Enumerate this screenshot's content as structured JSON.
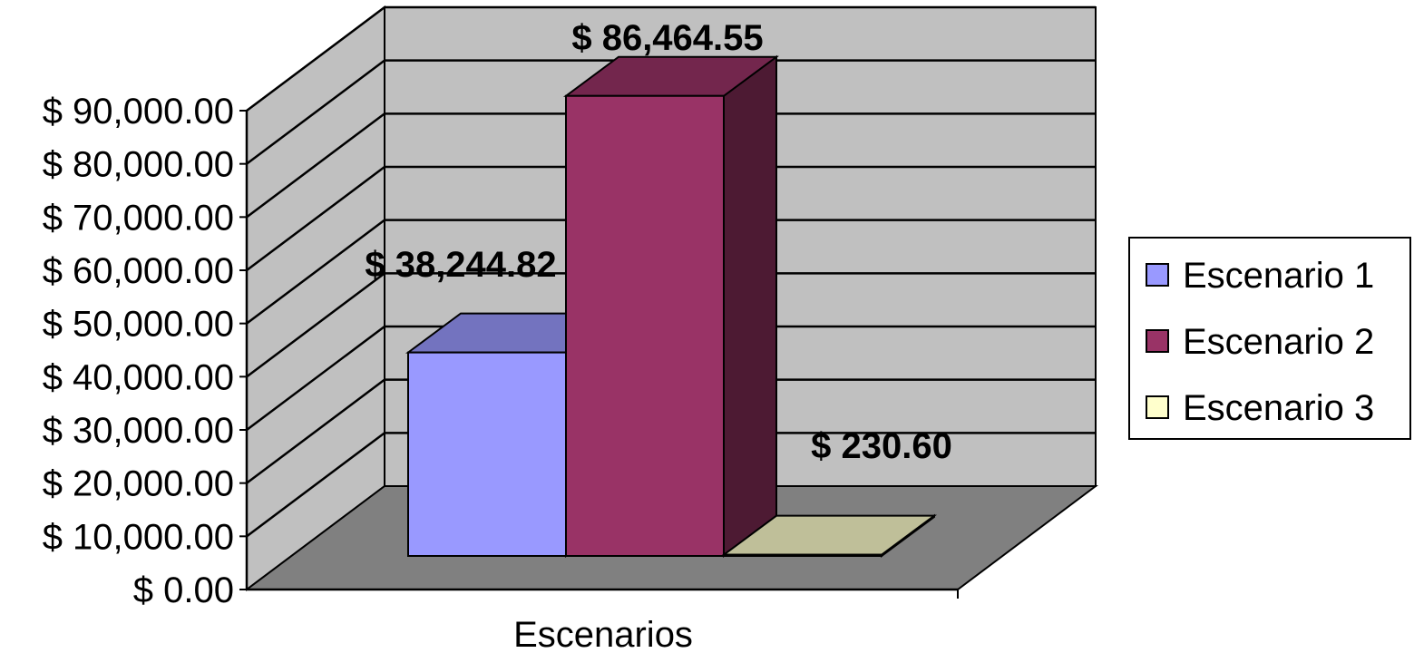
{
  "chart_data": {
    "type": "bar",
    "categories": [
      "Escenarios"
    ],
    "series": [
      {
        "name": "Escenario 1",
        "values": [
          38244.82
        ],
        "label": "$ 38,244.82"
      },
      {
        "name": "Escenario 2",
        "values": [
          86464.55
        ],
        "label": "$ 86,464.55"
      },
      {
        "name": "Escenario 3",
        "values": [
          230.6
        ],
        "label": "$ 230.60"
      }
    ],
    "xlabel": "Escenarios",
    "ylabel": "",
    "ylim": [
      0,
      90000
    ],
    "y_ticks": [
      {
        "value": 0,
        "label": "$ 0.00"
      },
      {
        "value": 10000,
        "label": "$ 10,000.00"
      },
      {
        "value": 20000,
        "label": "$ 20,000.00"
      },
      {
        "value": 30000,
        "label": "$ 30,000.00"
      },
      {
        "value": 40000,
        "label": "$ 40,000.00"
      },
      {
        "value": 50000,
        "label": "$ 50,000.00"
      },
      {
        "value": 60000,
        "label": "$ 60,000.00"
      },
      {
        "value": 70000,
        "label": "$ 70,000.00"
      },
      {
        "value": 80000,
        "label": "$ 80,000.00"
      },
      {
        "value": 90000,
        "label": "$ 90,000.00"
      }
    ],
    "grid": true,
    "three_d": true,
    "legend_position": "right",
    "colors": {
      "Escenario 1": "#9999ff",
      "Escenario 2": "#993366",
      "Escenario 3": "#ffffcc",
      "walls": "#c0c0c0",
      "floor": "#808080"
    }
  }
}
